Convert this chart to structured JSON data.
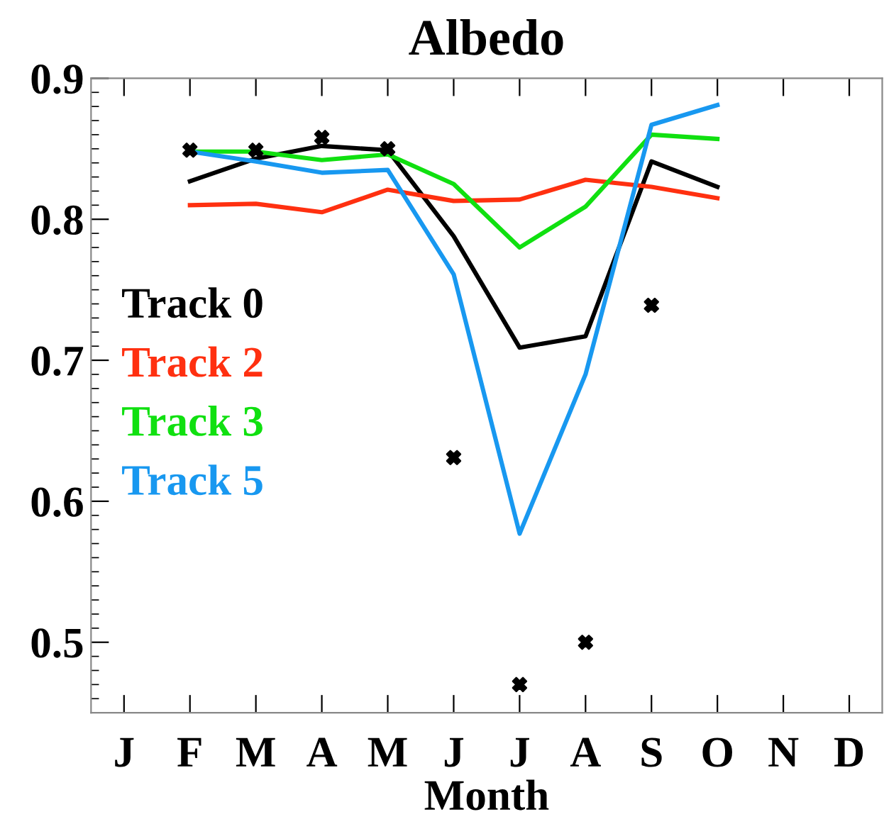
{
  "chart_data": {
    "type": "line",
    "title": "Albedo",
    "xlabel": "Month",
    "categories": [
      "J",
      "F",
      "M",
      "A",
      "M",
      "J",
      "J",
      "A",
      "S",
      "O",
      "N",
      "D"
    ],
    "ylim": [
      0.45,
      0.9
    ],
    "yticks": [
      0.5,
      0.6,
      0.7,
      0.8,
      0.9
    ],
    "grid": false,
    "legend": "center left",
    "marker": "none",
    "line_style": "solid",
    "series": [
      {
        "name": "Track 0",
        "color": "#000000",
        "values": [
          null,
          0.827,
          0.843,
          0.852,
          0.849,
          0.788,
          0.709,
          0.717,
          0.841,
          0.823,
          null,
          null
        ]
      },
      {
        "name": "Track 2",
        "color": "#ff3010",
        "values": [
          null,
          0.81,
          0.811,
          0.805,
          0.821,
          0.813,
          0.814,
          0.828,
          0.823,
          0.815,
          null,
          null
        ]
      },
      {
        "name": "Track 3",
        "color": "#10e010",
        "values": [
          null,
          0.848,
          0.848,
          0.842,
          0.846,
          0.825,
          0.78,
          0.809,
          0.86,
          0.857,
          null,
          null
        ]
      },
      {
        "name": "Track 5",
        "color": "#1898f0",
        "values": [
          null,
          0.848,
          0.841,
          0.833,
          0.835,
          0.761,
          0.577,
          0.69,
          0.867,
          0.881,
          null,
          null
        ]
      },
      {
        "type": "scatter",
        "marker": "cross",
        "color": "#000000",
        "values": [
          null,
          0.849,
          0.849,
          0.858,
          0.85,
          0.631,
          0.47,
          0.5,
          0.739,
          null,
          null,
          null
        ]
      }
    ]
  }
}
